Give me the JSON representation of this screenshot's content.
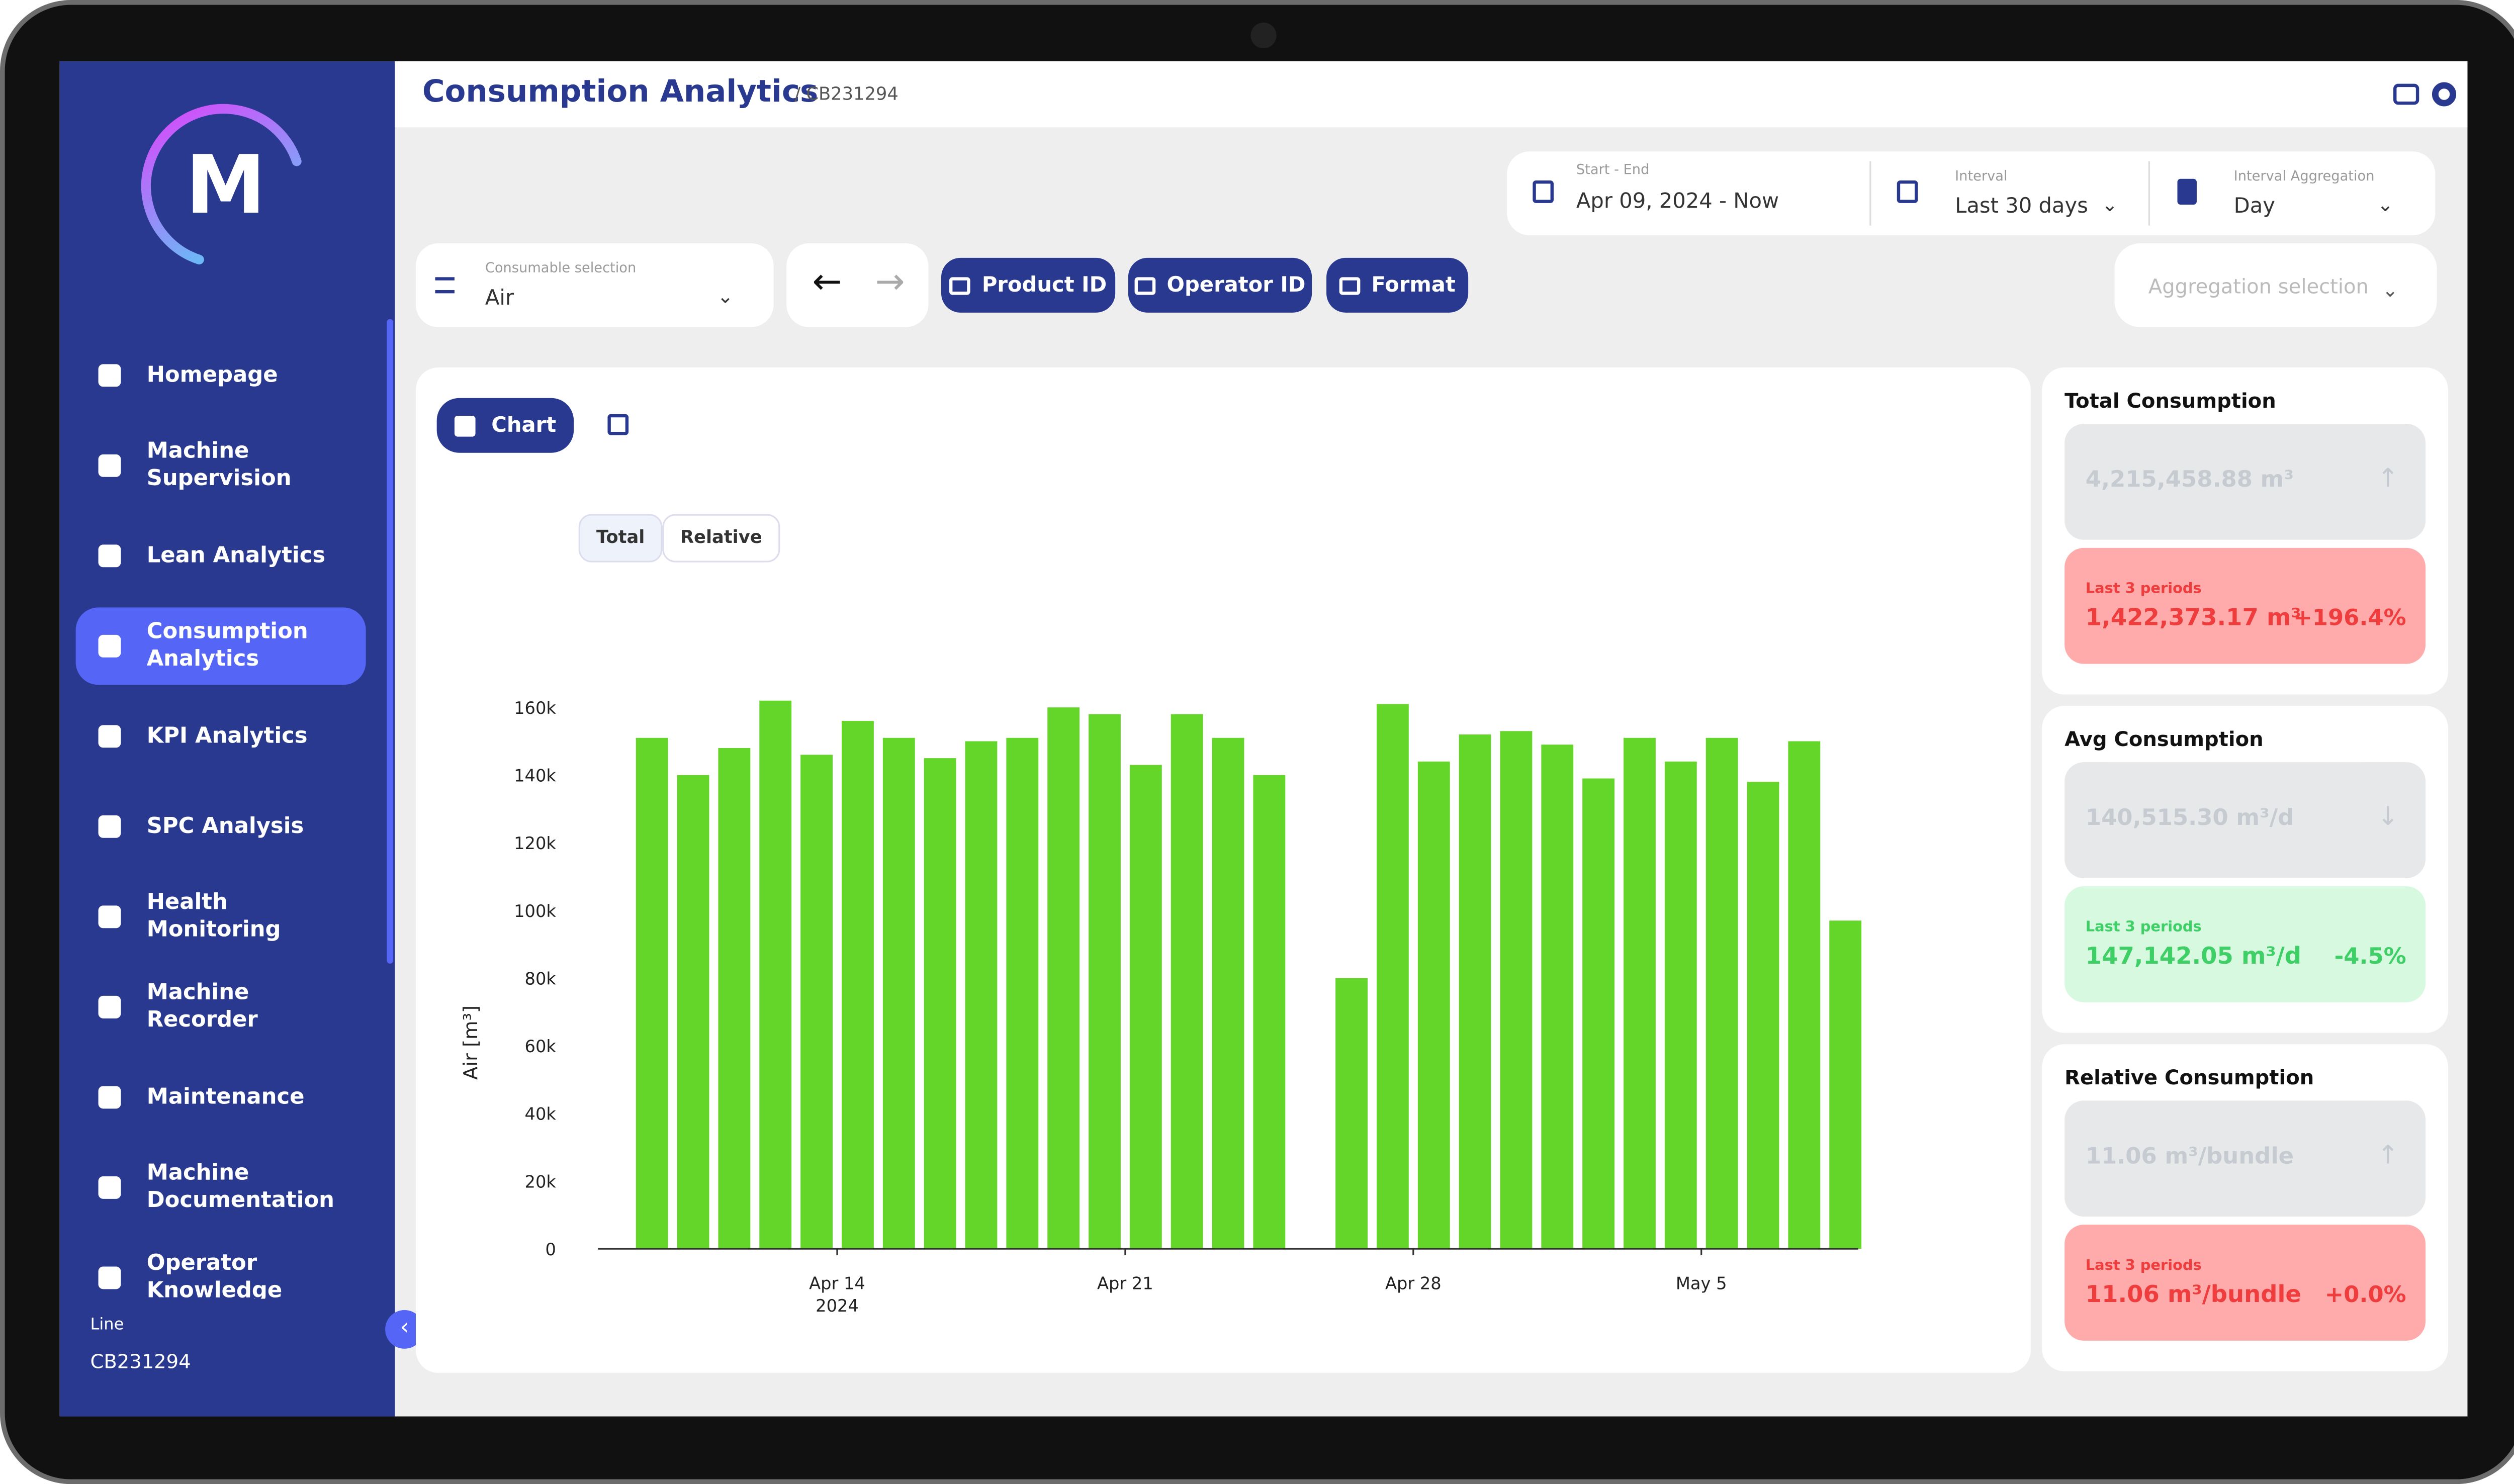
{
  "header": {
    "title": "Consumption Analytics",
    "breadcrumb": "/ CB231294"
  },
  "sidebar": {
    "logo": "M",
    "nav": [
      "Homepage",
      "Machine Supervision",
      "Lean Analytics",
      "Consumption Analytics",
      "KPI Analytics",
      "SPC Analysis",
      "Health Monitoring",
      "Machine Recorder",
      "Maintenance",
      "Machine Documentation",
      "Operator Knowledge"
    ],
    "active": 3,
    "line_label": "Line",
    "line_value": "CB231294"
  },
  "filters": {
    "date_range": {
      "label": "Start - End",
      "value": "Apr 09, 2024 - Now"
    },
    "interval": {
      "label": "Interval",
      "value": "Last 30 days"
    },
    "aggregation": {
      "label": "Interval Aggregation",
      "value": "Day"
    },
    "consumable": {
      "label": "Consumable selection",
      "value": "Air"
    },
    "aggregation_selection": "Aggregation selection",
    "buttons": [
      "Product ID",
      "Operator ID",
      "Format"
    ]
  },
  "view_tabs": {
    "chart": "Chart"
  },
  "toggle": [
    "Total",
    "Relative"
  ],
  "kpis": [
    {
      "title": "Total Consumption",
      "value": "4,215,458.88 m³",
      "period_label": "Last 3 periods",
      "period_value": "1,422,373.17 m³",
      "change": "+196.4%",
      "status": "bad",
      "trend": "up"
    },
    {
      "title": "Avg Consumption",
      "value": "140,515.30 m³/d",
      "period_label": "Last 3 periods",
      "period_value": "147,142.05 m³/d",
      "change": "-4.5%",
      "status": "good",
      "trend": "down"
    },
    {
      "title": "Relative Consumption",
      "value": "11.06 m³/bundle",
      "period_label": "Last 3 periods",
      "period_value": "11.06 m³/bundle",
      "change": "+0.0%",
      "status": "bad",
      "trend": "up"
    }
  ],
  "chart_data": {
    "type": "bar",
    "y_label": "Air [m³]",
    "color": "#63d629",
    "grid": false,
    "x": [
      "2024-04-09",
      "2024-04-10",
      "2024-04-11",
      "2024-04-12",
      "2024-04-13",
      "2024-04-14",
      "2024-04-15",
      "2024-04-16",
      "2024-04-17",
      "2024-04-18",
      "2024-04-19",
      "2024-04-20",
      "2024-04-21",
      "2024-04-22",
      "2024-04-23",
      "2024-04-24",
      "2024-04-25",
      "2024-04-26",
      "2024-04-27",
      "2024-04-28",
      "2024-04-29",
      "2024-04-30",
      "2024-05-01",
      "2024-05-02",
      "2024-05-03",
      "2024-05-04",
      "2024-05-05",
      "2024-05-06",
      "2024-05-07",
      "2024-05-08"
    ],
    "values": [
      151000,
      140000,
      148000,
      162000,
      146000,
      156000,
      151000,
      145000,
      150000,
      151000,
      160000,
      158000,
      143000,
      158000,
      151000,
      140000,
      0,
      80000,
      161000,
      144000,
      152000,
      153000,
      149000,
      139000,
      151000,
      144000,
      151000,
      138000,
      150000,
      97000
    ],
    "ylim": [
      0,
      160000
    ],
    "yticks": [
      {
        "value": 0,
        "label": "0"
      },
      {
        "value": 20000,
        "label": "20k"
      },
      {
        "value": 40000,
        "label": "40k"
      },
      {
        "value": 60000,
        "label": "60k"
      },
      {
        "value": 80000,
        "label": "80k"
      },
      {
        "value": 100000,
        "label": "100k"
      },
      {
        "value": 120000,
        "label": "120k"
      },
      {
        "value": 140000,
        "label": "140k"
      },
      {
        "value": 160000,
        "label": "160k"
      }
    ],
    "xlim": [
      "2024-04-08T12:00",
      "2024-05-08T12:00"
    ],
    "xticks": [
      {
        "value": "2024-04-14",
        "label": "Apr 14"
      },
      {
        "value": "2024-04-21",
        "label": "Apr 21"
      },
      {
        "value": "2024-04-28",
        "label": "Apr 28"
      },
      {
        "value": "2024-05-05",
        "label": "May 5"
      }
    ],
    "x_year_label": "2024"
  }
}
